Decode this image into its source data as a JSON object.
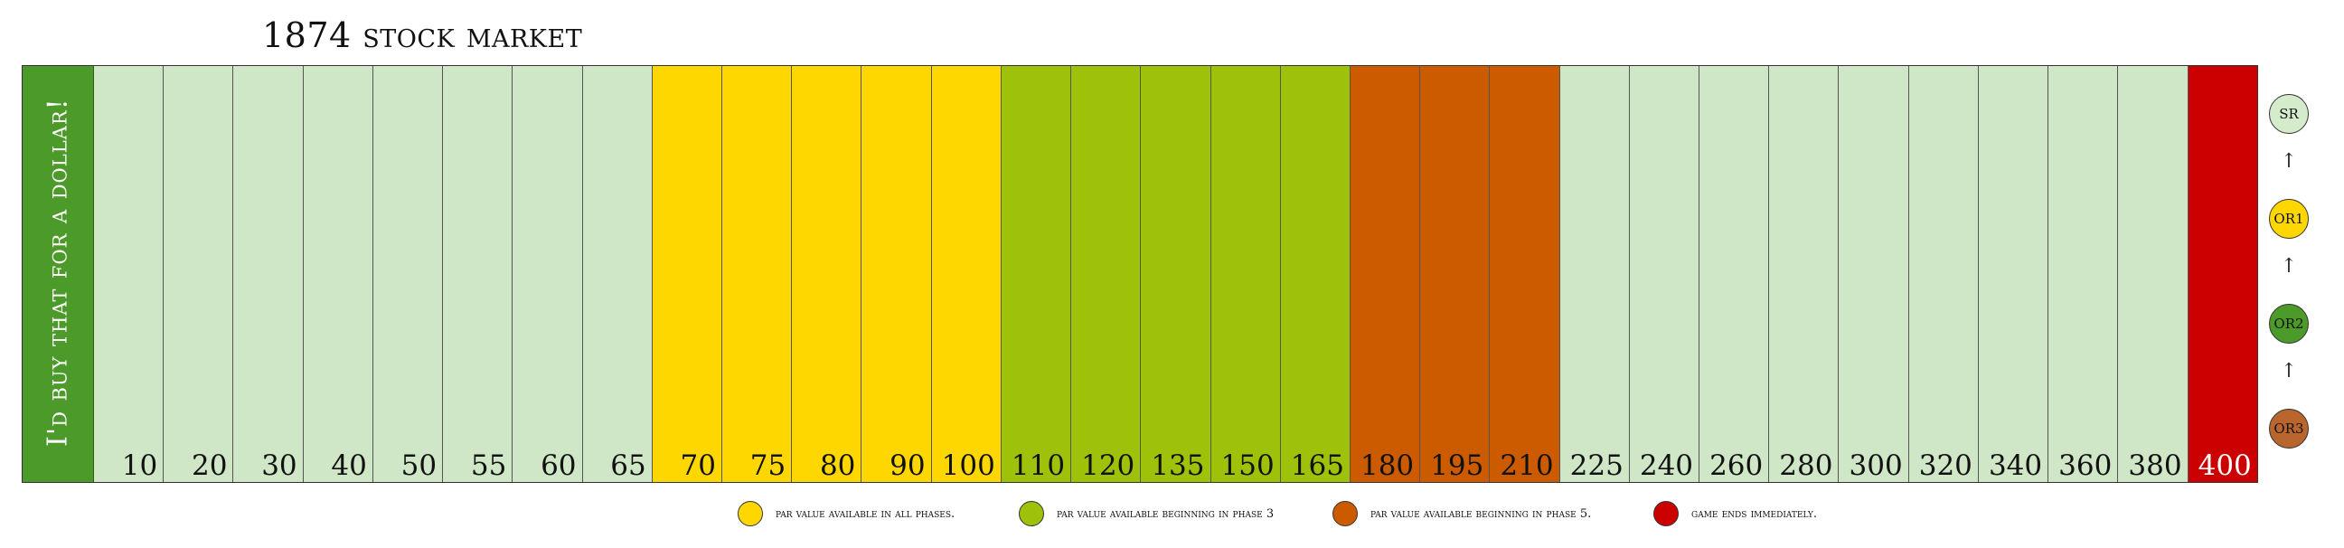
{
  "title": "1874 stock market",
  "header_label": "I'd buy that for a dollar!",
  "colors": {
    "plain": "#cfe6c7",
    "yellow": "#ffd700",
    "green": "#9ec10a",
    "orange": "#cc5b00",
    "red": "#cc0000",
    "header_green": "#4c9a2a",
    "sr": "#d4ebcc",
    "or1": "#ffd700",
    "or2": "#4c9a2a",
    "or3": "#b8652e"
  },
  "cells": [
    {
      "price": "10",
      "zone": "plain"
    },
    {
      "price": "20",
      "zone": "plain"
    },
    {
      "price": "30",
      "zone": "plain"
    },
    {
      "price": "40",
      "zone": "plain"
    },
    {
      "price": "50",
      "zone": "plain"
    },
    {
      "price": "55",
      "zone": "plain"
    },
    {
      "price": "60",
      "zone": "plain"
    },
    {
      "price": "65",
      "zone": "plain"
    },
    {
      "price": "70",
      "zone": "yellow"
    },
    {
      "price": "75",
      "zone": "yellow"
    },
    {
      "price": "80",
      "zone": "yellow"
    },
    {
      "price": "90",
      "zone": "yellow"
    },
    {
      "price": "100",
      "zone": "yellow"
    },
    {
      "price": "110",
      "zone": "green"
    },
    {
      "price": "120",
      "zone": "green"
    },
    {
      "price": "135",
      "zone": "green"
    },
    {
      "price": "150",
      "zone": "green"
    },
    {
      "price": "165",
      "zone": "green"
    },
    {
      "price": "180",
      "zone": "orange"
    },
    {
      "price": "195",
      "zone": "orange"
    },
    {
      "price": "210",
      "zone": "orange"
    },
    {
      "price": "225",
      "zone": "plain"
    },
    {
      "price": "240",
      "zone": "plain"
    },
    {
      "price": "260",
      "zone": "plain"
    },
    {
      "price": "280",
      "zone": "plain"
    },
    {
      "price": "300",
      "zone": "plain"
    },
    {
      "price": "320",
      "zone": "plain"
    },
    {
      "price": "340",
      "zone": "plain"
    },
    {
      "price": "360",
      "zone": "plain"
    },
    {
      "price": "380",
      "zone": "plain"
    },
    {
      "price": "400",
      "zone": "red"
    }
  ],
  "round_track": [
    {
      "label": "SR",
      "color": "#d4ebcc"
    },
    {
      "label": "OR1",
      "color": "#ffd700"
    },
    {
      "label": "OR2",
      "color": "#4c9a2a"
    },
    {
      "label": "OR3",
      "color": "#b8652e"
    }
  ],
  "arrow_glyph": "↑",
  "legend": [
    {
      "text": "par value available in all phases.",
      "color": "#ffd700"
    },
    {
      "text": "par value available beginning in phase 3",
      "color": "#9ec10a"
    },
    {
      "text": "par value available beginning in phase 5.",
      "color": "#cc5b00"
    },
    {
      "text": "game ends immediately.",
      "color": "#cc0000"
    }
  ]
}
